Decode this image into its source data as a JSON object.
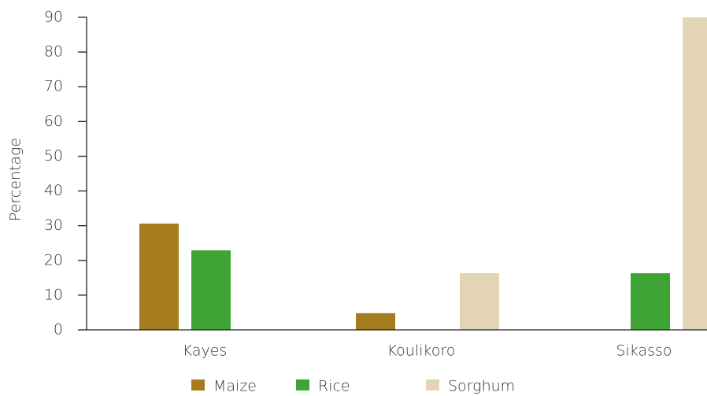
{
  "chart_data": {
    "type": "bar",
    "y_label": "Percentage",
    "categories": [
      "Kayes",
      "Koulikoro",
      "Sikasso"
    ],
    "series": [
      {
        "name": "Maize",
        "color": "#a57d1e",
        "values": [
          30.6,
          4.8,
          null
        ]
      },
      {
        "name": "Rice",
        "color": "#3ea535",
        "values": [
          22.9,
          null,
          16.3
        ]
      },
      {
        "name": "Sorghum",
        "color": "#e2d4b4",
        "values": [
          null,
          16.3,
          90
        ]
      }
    ],
    "ylim": [
      0,
      90
    ],
    "yticks": [
      0,
      10,
      20,
      30,
      40,
      50,
      60,
      70,
      80,
      90
    ],
    "grid": false
  }
}
